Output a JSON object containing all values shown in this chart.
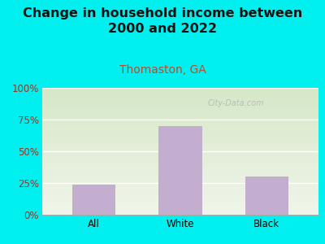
{
  "title": "Change in household income between\n2000 and 2022",
  "subtitle": "Thomaston, GA",
  "categories": [
    "All",
    "White",
    "Black"
  ],
  "values": [
    24,
    70,
    30
  ],
  "bar_color": "#c4aed0",
  "bg_color": "#00efef",
  "plot_bg_color_top": "#d6e8c8",
  "plot_bg_color_bottom": "#f0f5ea",
  "title_color": "#111111",
  "subtitle_color": "#b05030",
  "axis_label_color": "#993322",
  "yticks": [
    0,
    25,
    50,
    75,
    100
  ],
  "ytick_labels": [
    "0%",
    "25%",
    "50%",
    "75%",
    "100%"
  ],
  "ylim": [
    0,
    100
  ],
  "watermark": "City-Data.com",
  "title_fontsize": 11.5,
  "subtitle_fontsize": 10,
  "tick_fontsize": 8.5
}
